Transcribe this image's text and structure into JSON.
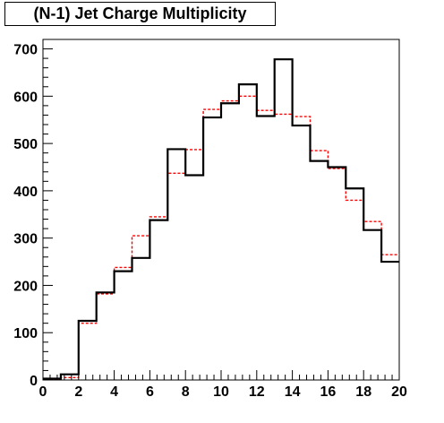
{
  "chart_data": {
    "type": "histogram",
    "title": "(N-1) Jet Charge Multiplicity",
    "xlabel": "",
    "ylabel": "",
    "xlim": [
      0,
      20
    ],
    "ylim": [
      0,
      720
    ],
    "bin_edges": [
      0,
      1,
      2,
      3,
      4,
      5,
      6,
      7,
      8,
      9,
      10,
      11,
      12,
      13,
      14,
      15,
      16,
      17,
      18,
      19,
      20
    ],
    "x_ticks": [
      0,
      2,
      4,
      6,
      8,
      10,
      12,
      14,
      16,
      18,
      20
    ],
    "y_ticks": [
      0,
      100,
      200,
      300,
      400,
      500,
      600,
      700
    ],
    "grid": false,
    "legend": "none",
    "series": [
      {
        "style": "solid",
        "color": "#000000",
        "values": [
          3,
          12,
          125,
          185,
          230,
          258,
          338,
          488,
          433,
          555,
          585,
          625,
          558,
          678,
          538,
          463,
          450,
          405,
          317,
          250
        ]
      },
      {
        "style": "dashed",
        "color": "#ff0000",
        "values": [
          2,
          5,
          120,
          182,
          238,
          305,
          345,
          437,
          487,
          572,
          590,
          600,
          570,
          562,
          557,
          485,
          447,
          380,
          335,
          265
        ]
      }
    ]
  }
}
